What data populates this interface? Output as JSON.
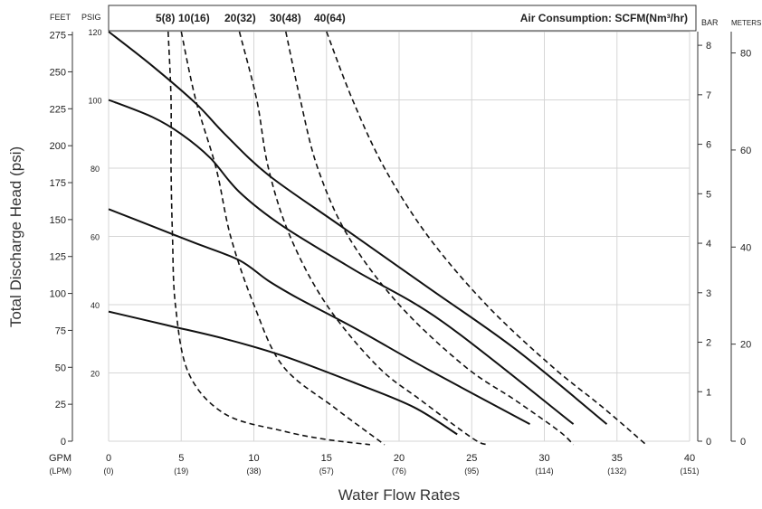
{
  "chart_data": {
    "type": "line",
    "title": "",
    "xlabel": "Water Flow Rates",
    "ylabel": "Total Discharge Head (psi)",
    "xlim": [
      0,
      40
    ],
    "ylim": [
      0,
      120
    ],
    "x_units": {
      "primary": "GPM",
      "secondary": "(LPM)"
    },
    "y_units": {
      "feet": "FEET",
      "psig": "PSIG",
      "bar": "BAR",
      "meters": "METERS"
    },
    "x_ticks": [
      0,
      5,
      10,
      15,
      20,
      25,
      30,
      35,
      40
    ],
    "x_ticks_lpm": [
      "(0)",
      "(19)",
      "(38)",
      "(57)",
      "(76)",
      "(95)",
      "(114)",
      "(132)",
      "(151)"
    ],
    "psig_ticks": [
      120,
      100,
      80,
      60,
      40,
      20
    ],
    "feet_ticks": [
      275,
      250,
      225,
      200,
      175,
      150,
      125,
      100,
      75,
      50,
      25,
      0
    ],
    "bar_ticks": [
      0,
      1,
      2,
      3,
      4,
      5,
      6,
      7,
      8
    ],
    "meters_ticks": [
      0,
      20,
      40,
      60,
      80
    ],
    "grid": true,
    "air_consumption_label": "Air Consumption: SCFM(Nm³/hr)",
    "air_consumption_values": [
      "5(8)",
      "10(16)",
      "20(32)",
      "30(48)",
      "40(64)"
    ],
    "pressure_series": [
      {
        "points": [
          [
            0,
            120
          ],
          [
            3,
            110
          ],
          [
            6,
            99
          ],
          [
            8,
            90
          ],
          [
            11,
            78
          ],
          [
            16,
            63
          ],
          [
            22,
            45
          ],
          [
            28,
            27
          ],
          [
            34.3,
            5
          ]
        ]
      },
      {
        "points": [
          [
            0,
            100
          ],
          [
            3,
            95
          ],
          [
            5,
            90
          ],
          [
            7,
            83
          ],
          [
            9,
            73
          ],
          [
            12,
            63
          ],
          [
            17,
            50
          ],
          [
            23,
            35
          ],
          [
            32,
            5
          ]
        ]
      },
      {
        "points": [
          [
            0,
            68
          ],
          [
            3,
            63
          ],
          [
            6,
            58
          ],
          [
            9,
            53
          ],
          [
            11,
            47
          ],
          [
            13,
            42
          ],
          [
            17,
            33
          ],
          [
            22,
            21
          ],
          [
            29,
            5
          ]
        ]
      },
      {
        "points": [
          [
            0,
            38
          ],
          [
            4,
            34
          ],
          [
            8,
            30
          ],
          [
            12,
            25
          ],
          [
            17,
            17
          ],
          [
            21,
            10
          ],
          [
            24,
            2
          ]
        ]
      }
    ],
    "air_series": [
      {
        "label": "5(8)",
        "points": [
          [
            4.1,
            120
          ],
          [
            4.3,
            100
          ],
          [
            4.3,
            80
          ],
          [
            4.4,
            60
          ],
          [
            4.6,
            40
          ],
          [
            5.5,
            20
          ],
          [
            8,
            8
          ],
          [
            12,
            3
          ],
          [
            15,
            0.5
          ],
          [
            18,
            -1
          ]
        ]
      },
      {
        "label": "10(16)",
        "points": [
          [
            5,
            120
          ],
          [
            6,
            100
          ],
          [
            7.4,
            80
          ],
          [
            8.4,
            60
          ],
          [
            10,
            40
          ],
          [
            12,
            22
          ],
          [
            15.5,
            10
          ],
          [
            19,
            -1
          ]
        ]
      },
      {
        "label": "20(32)",
        "points": [
          [
            9,
            120
          ],
          [
            10.2,
            100
          ],
          [
            11,
            80
          ],
          [
            12.5,
            60
          ],
          [
            15,
            40
          ],
          [
            18.5,
            22
          ],
          [
            21.5,
            12
          ],
          [
            25,
            1
          ],
          [
            26,
            -1
          ]
        ]
      },
      {
        "label": "30(48)",
        "points": [
          [
            12.2,
            120
          ],
          [
            13.2,
            100
          ],
          [
            14.4,
            80
          ],
          [
            16.5,
            60
          ],
          [
            20,
            40
          ],
          [
            24.5,
            22
          ],
          [
            28,
            12
          ],
          [
            31,
            3
          ],
          [
            32,
            -1
          ]
        ]
      },
      {
        "label": "40(64)",
        "points": [
          [
            15,
            120
          ],
          [
            16.8,
            100
          ],
          [
            19,
            80
          ],
          [
            22,
            60
          ],
          [
            26,
            40
          ],
          [
            30.5,
            22
          ],
          [
            34,
            10
          ],
          [
            37,
            -1
          ]
        ]
      }
    ]
  }
}
